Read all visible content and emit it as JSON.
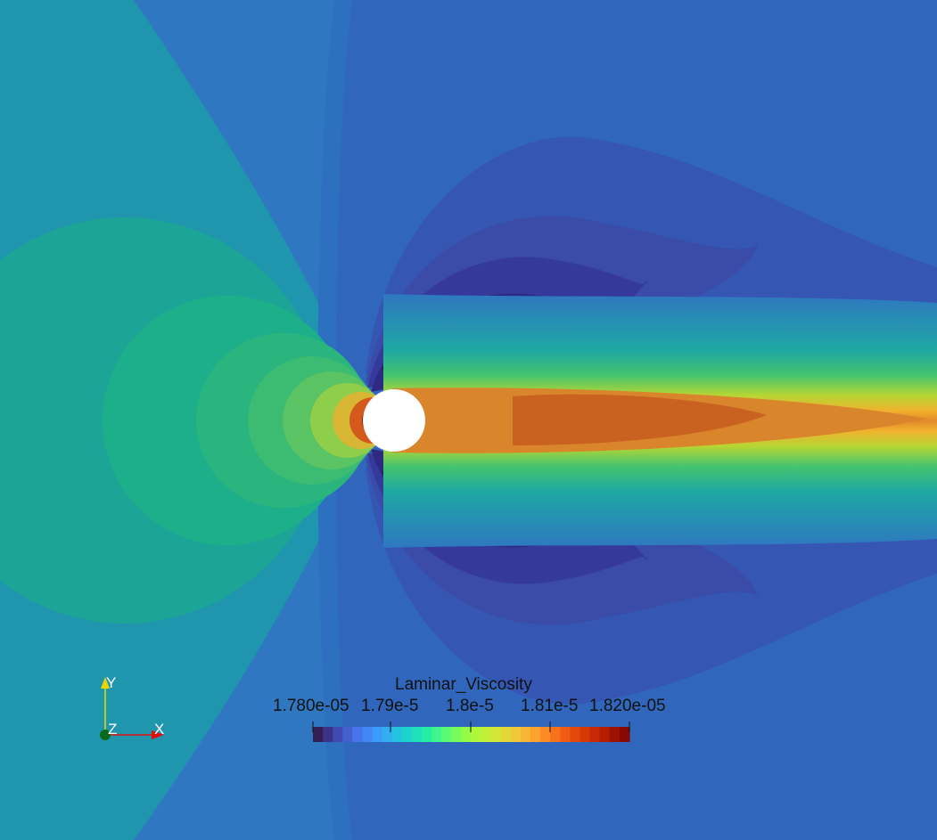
{
  "colorbar": {
    "title": "Laminar_Viscosity",
    "tick_labels": [
      "1.780e-05",
      "1.79e-5",
      "1.8e-5",
      "1.81e-5",
      "1.820e-05"
    ],
    "range": [
      1.78e-05,
      1.82e-05
    ],
    "colormap": "turbo",
    "levels": 32
  },
  "orientation_axes": {
    "x_label": "X",
    "y_label": "Y",
    "z_label": "Z",
    "x_color": "#e01010",
    "y_color": "#e8d800",
    "z_color": "#0a6a1a"
  },
  "colors": {
    "obstacle": "#ffffff",
    "background_field": "#2f77c1"
  }
}
